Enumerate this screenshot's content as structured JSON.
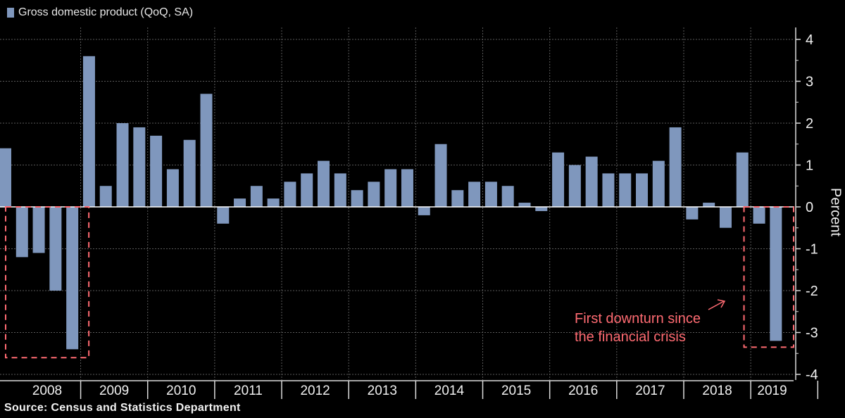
{
  "legend": {
    "label": "Gross domestic product (QoQ, SA)",
    "color": "#7f97bd"
  },
  "source": "Source: Census and Statistics Department",
  "annotation": {
    "line1": "First downturn since",
    "line2": "the financial crisis",
    "color": "#ff6b72"
  },
  "chart_data": {
    "type": "bar",
    "title": "",
    "ylabel": "Percent",
    "ylim": [
      -4,
      4
    ],
    "yticks": [
      4,
      3,
      2,
      1,
      0,
      -1,
      -2,
      -3,
      -4
    ],
    "grid": true,
    "legend_position": "top-left",
    "years": [
      "2008",
      "2009",
      "2010",
      "2011",
      "2012",
      "2013",
      "2014",
      "2015",
      "2016",
      "2017",
      "2018",
      "2019"
    ],
    "series": [
      {
        "name": "Gross domestic product (QoQ, SA)",
        "color": "#7f97bd",
        "values": [
          1.4,
          -1.2,
          -1.1,
          -2.0,
          -3.4,
          3.6,
          0.5,
          2.0,
          1.9,
          1.7,
          0.9,
          1.6,
          2.7,
          -0.4,
          0.2,
          0.5,
          0.2,
          0.6,
          0.8,
          1.1,
          0.8,
          0.4,
          0.6,
          0.9,
          0.9,
          -0.2,
          1.5,
          0.4,
          0.6,
          0.6,
          0.5,
          0.1,
          -0.1,
          1.3,
          1.0,
          1.2,
          0.8,
          0.8,
          0.8,
          1.1,
          1.9,
          -0.3,
          0.1,
          -0.5,
          1.3,
          -0.4,
          -3.2
        ]
      }
    ]
  }
}
